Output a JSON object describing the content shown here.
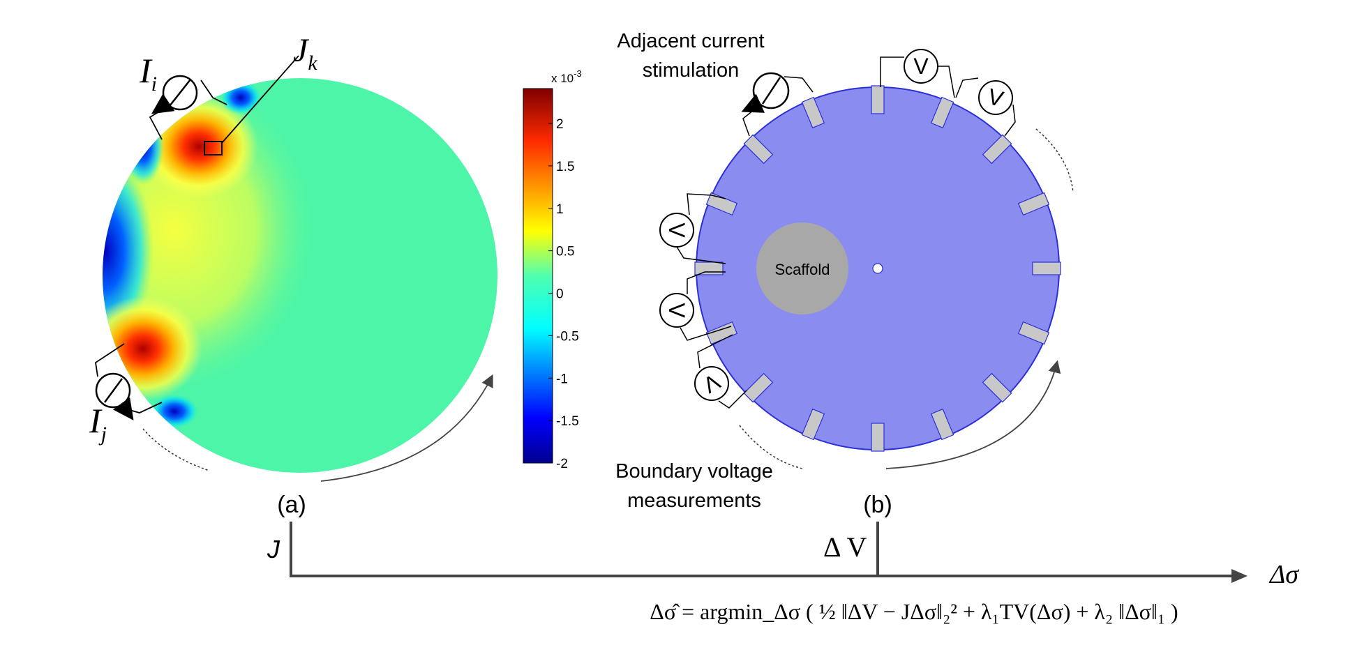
{
  "panel_a": {
    "label": "(a)",
    "current_i": "I",
    "current_i_sub": "i",
    "current_j": "I",
    "current_j_sub": "j",
    "sensitivity_label": "J",
    "sensitivity_sub": "k",
    "colorbar": {
      "multiplier": "x 10",
      "exponent": "-3",
      "ticks": [
        "2",
        "1.5",
        "1",
        "0.5",
        "0",
        "-0.5",
        "-1",
        "-1.5",
        "-2"
      ]
    }
  },
  "panel_b": {
    "label": "(b)",
    "stimulation_line1": "Adjacent current",
    "stimulation_line2": "stimulation",
    "measurement_line1": "Boundary voltage",
    "measurement_line2": "measurements",
    "scaffold": "Scaffold",
    "voltmeter_symbol": "V"
  },
  "bottom": {
    "axis_j": "J",
    "axis_dv": "Δ V",
    "axis_dsigma": "Δσ",
    "equation": "Δσ̂ = argmin_Δσ ( ½ ‖ΔV − JΔσ‖₂² + λ₁TV(Δσ) + λ₂ ‖Δσ‖₁ )"
  },
  "colors": {
    "tank_fill": "#8a8cf0",
    "tank_edge": "#2a2fd8",
    "electrode": "#c8c8c8",
    "scaffold": "#a8a8a8",
    "field_bg": "#4cf5a8"
  }
}
